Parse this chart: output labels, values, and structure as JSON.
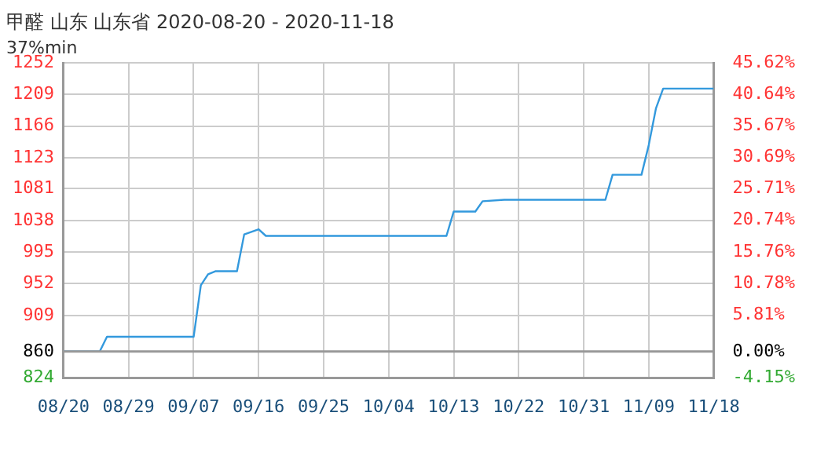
{
  "chart_data": {
    "type": "line",
    "title": "甲醛 山东 山东省 2020-08-20 - 2020-11-18",
    "subtitle": "37%min",
    "x": [
      "2020-08-20",
      "2020-08-25",
      "2020-08-26",
      "2020-09-07",
      "2020-09-08",
      "2020-09-09",
      "2020-09-10",
      "2020-09-13",
      "2020-09-14",
      "2020-09-16",
      "2020-09-17",
      "2020-10-12",
      "2020-10-13",
      "2020-10-16",
      "2020-10-17",
      "2020-10-20",
      "2020-11-03",
      "2020-11-04",
      "2020-11-08",
      "2020-11-09",
      "2020-11-10",
      "2020-11-11",
      "2020-11-18"
    ],
    "series": [
      {
        "color": "#3399dd",
        "values": [
          860,
          860,
          880,
          880,
          950,
          965,
          969,
          969,
          1019,
          1026,
          1017,
          1017,
          1050,
          1050,
          1064,
          1066,
          1066,
          1100,
          1100,
          1140,
          1190,
          1217,
          1217
        ]
      }
    ],
    "xlim": [
      "2020-08-20",
      "2020-11-18"
    ],
    "xticks": [
      {
        "value": "2020-08-20",
        "label": "08/20"
      },
      {
        "value": "2020-08-29",
        "label": "08/29"
      },
      {
        "value": "2020-09-07",
        "label": "09/07"
      },
      {
        "value": "2020-09-16",
        "label": "09/16"
      },
      {
        "value": "2020-09-25",
        "label": "09/25"
      },
      {
        "value": "2020-10-04",
        "label": "10/04"
      },
      {
        "value": "2020-10-13",
        "label": "10/13"
      },
      {
        "value": "2020-10-22",
        "label": "10/22"
      },
      {
        "value": "2020-10-31",
        "label": "10/31"
      },
      {
        "value": "2020-11-09",
        "label": "11/09"
      },
      {
        "value": "2020-11-18",
        "label": "11/18"
      }
    ],
    "ylim": [
      824,
      1252
    ],
    "yticks": [
      824,
      860,
      909,
      952,
      995,
      1038,
      1081,
      1123,
      1166,
      1209,
      1252
    ],
    "y2lim": [
      -4.15,
      45.62
    ],
    "y2ticks": [
      {
        "value": -4.15,
        "label": "-4.15%"
      },
      {
        "value": 0,
        "label": "0.00%"
      },
      {
        "value": 5.81,
        "label": "5.81%"
      },
      {
        "value": 10.78,
        "label": "10.78%"
      },
      {
        "value": 15.76,
        "label": "15.76%"
      },
      {
        "value": 20.74,
        "label": "20.74%"
      },
      {
        "value": 25.71,
        "label": "25.71%"
      },
      {
        "value": 30.69,
        "label": "30.69%"
      },
      {
        "value": 35.67,
        "label": "35.67%"
      },
      {
        "value": 40.64,
        "label": "40.64%"
      },
      {
        "value": 45.62,
        "label": "45.62%"
      }
    ],
    "ref_lines": [
      {
        "axis": "y",
        "value": 860,
        "color": "#999999"
      }
    ],
    "grid": true,
    "legend": false,
    "marker": "none",
    "line_style": "solid"
  }
}
